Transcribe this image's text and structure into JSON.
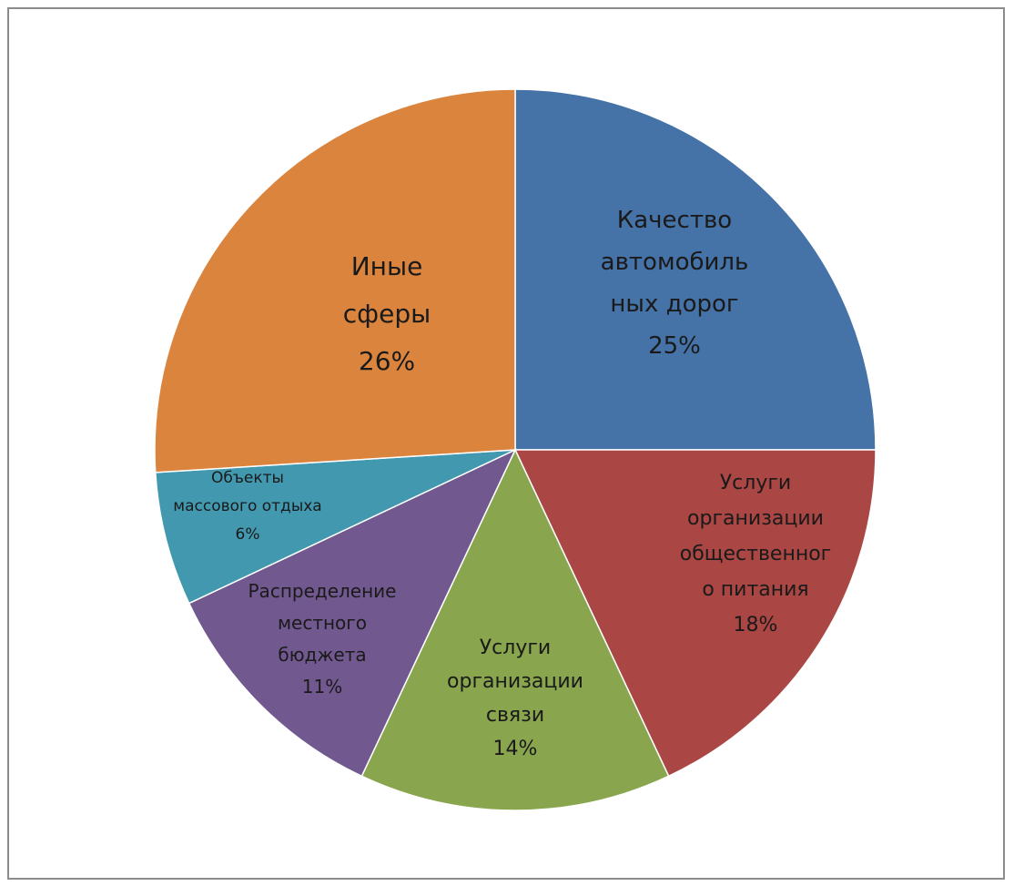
{
  "chart_data": {
    "type": "pie",
    "title": "",
    "start_angle_deg": 0,
    "direction": "clockwise",
    "legend": "none",
    "slices": [
      {
        "lines": [
          "Качество",
          "автомобиль",
          "ных дорог"
        ],
        "pct_label": "25%",
        "value": 25,
        "color": "#4572a7"
      },
      {
        "lines": [
          "Услуги",
          "организации",
          "общественног",
          "о питания"
        ],
        "pct_label": "18%",
        "value": 18,
        "color": "#aa4643"
      },
      {
        "lines": [
          "Услуги",
          "организации",
          "связи"
        ],
        "pct_label": "14%",
        "value": 14,
        "color": "#89a54e"
      },
      {
        "lines": [
          "Распределение",
          "местного",
          "бюджета"
        ],
        "pct_label": "11%",
        "value": 11,
        "color": "#71588f"
      },
      {
        "lines": [
          "Объекты",
          "массового отдыха"
        ],
        "pct_label": "6%",
        "value": 6,
        "color": "#4198af"
      },
      {
        "lines": [
          "Иные",
          "сферы"
        ],
        "pct_label": "26%",
        "value": 26,
        "color": "#db843d"
      }
    ]
  }
}
